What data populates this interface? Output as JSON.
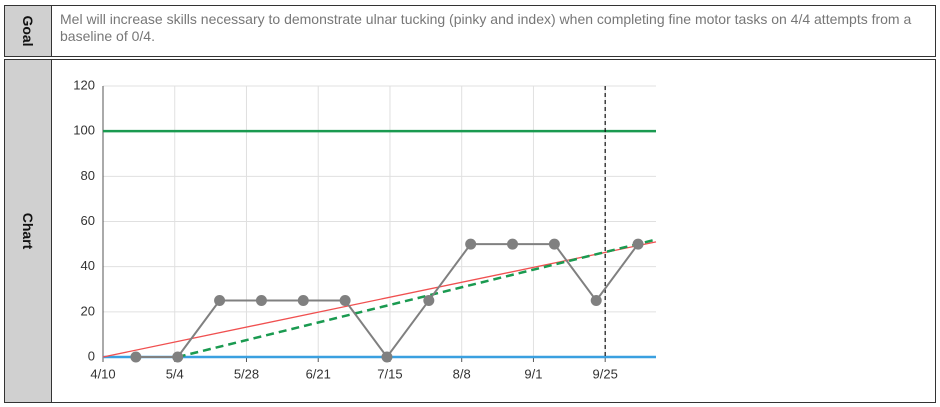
{
  "labels": {
    "goal": "Goal",
    "chart": "Chart",
    "goal_text": "Mel will increase skills necessary to demonstrate ulnar tucking (pinky and index) when completing fine motor tasks on 4/4 attempts from a baseline of 0/4."
  },
  "chart_data": {
    "type": "line",
    "x": [
      "4/21",
      "5/5",
      "5/19",
      "6/2",
      "6/16",
      "6/30",
      "7/14",
      "7/28",
      "8/11",
      "8/25",
      "9/8",
      "9/22",
      "10/6"
    ],
    "series": [
      {
        "color": "#808080",
        "values": [
          0,
          0,
          25,
          25,
          25,
          25,
          0,
          25,
          50,
          50,
          50,
          25,
          50
        ]
      }
    ],
    "aim_line": {
      "color": "#f05050",
      "x": [
        "4/10",
        "10/12"
      ],
      "values": [
        0,
        51
      ]
    },
    "trend_line": {
      "color": "#1a9a50",
      "x": [
        "5/5",
        "10/12"
      ],
      "values": [
        0,
        52
      ]
    },
    "goal_level": {
      "color": "#1a9a50",
      "value": 100
    },
    "baseline_level": {
      "color": "#3aa0e0",
      "value": 0
    },
    "marker_date": "9/25",
    "xlim": [
      "4/10",
      "10/12"
    ],
    "xticks": [
      "4/10",
      "5/4",
      "5/28",
      "6/21",
      "7/15",
      "8/8",
      "9/1",
      "9/25"
    ],
    "ylim": [
      0,
      120
    ],
    "yticks": [
      0,
      20,
      40,
      60,
      80,
      100,
      120
    ],
    "grid": true
  }
}
